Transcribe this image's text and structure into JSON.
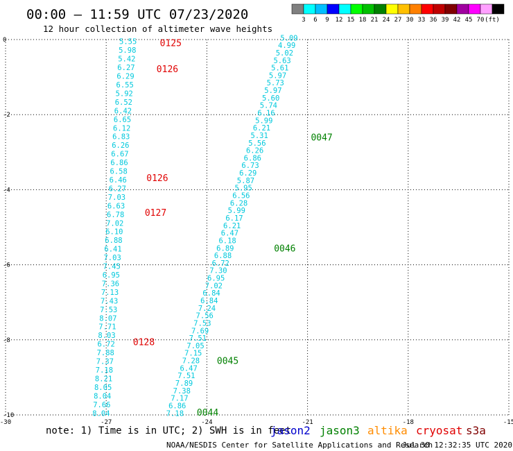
{
  "header": {
    "title": "00:00 – 11:59 UTC 07/23/2020",
    "subtitle": "12 hour collection of altimeter wave heights"
  },
  "scale": {
    "labels": [
      "3",
      "6",
      "9",
      "12",
      "15",
      "18",
      "21",
      "24",
      "27",
      "30",
      "33",
      "36",
      "39",
      "42",
      "45",
      "70",
      "(ft)"
    ],
    "colors": [
      "#808080",
      "#00ffff",
      "#00bfff",
      "#0000ff",
      "#00ffff",
      "#00ff00",
      "#00c000",
      "#008000",
      "#ffff00",
      "#ffc000",
      "#ff8000",
      "#ff0000",
      "#c00000",
      "#800000",
      "#a000a0",
      "#ff00ff",
      "#ffa0ff",
      "#000000"
    ]
  },
  "footer": {
    "note": "note: 1) Time is in UTC; 2) SWH is in feet",
    "satellites": [
      {
        "name": "jason2",
        "color": "#0000cc"
      },
      {
        "name": "jason3",
        "color": "#008000"
      },
      {
        "name": "altika",
        "color": "#ff8c00"
      },
      {
        "name": "cryosat",
        "color": "#e00000"
      },
      {
        "name": "s3a",
        "color": "#800000"
      }
    ],
    "credit": "NOAA/NESDIS Center for Satellite Applications and Research",
    "timestamp": "Jul 30 12:32:35 UTC 2020"
  },
  "chart_data": {
    "type": "scatter",
    "xlim": [
      -30,
      -15
    ],
    "ylim": [
      -10,
      0
    ],
    "x_ticks": [
      "-30",
      "-27",
      "-24",
      "-21",
      "-18",
      "-15"
    ],
    "y_ticks": [
      "0",
      "-2",
      "-4",
      "-6",
      "-8",
      "-10"
    ],
    "grid": true,
    "value_color": "#00c8dc",
    "series": [
      {
        "name": "cryosat",
        "color": "#e00000",
        "values": [
          "5.55",
          "5.98",
          "5.42",
          "6.27",
          "6.29",
          "6.55",
          "5.92",
          "6.52",
          "6.42",
          "6.65",
          "6.12",
          "6.83",
          "6.26",
          "6.67",
          "6.86",
          "6.58",
          "6.46",
          "6.27",
          "7.03",
          "6.63",
          "6.78",
          "7.02",
          "6.10",
          "6.88",
          "6.41",
          "7.03",
          "7.45",
          "6.95",
          "7.36",
          "7.13",
          "7.43",
          "7.53",
          "8.07",
          "7.71",
          "8.03",
          "6.72",
          "7.88",
          "7.37",
          "7.18",
          "8.21",
          "8.05",
          "8.04",
          "7.66",
          "8.04"
        ],
        "x_start": -26.35,
        "x_end": -27.15,
        "y_start": -0.05,
        "y_end": -9.95,
        "time_labels": [
          {
            "text": "0125",
            "lat": -0.08,
            "lon": -25.4
          },
          {
            "text": "0126",
            "lat": -0.78,
            "lon": -25.5
          },
          {
            "text": "0126",
            "lat": -3.68,
            "lon": -25.8
          },
          {
            "text": "0127",
            "lat": -4.6,
            "lon": -25.85
          },
          {
            "text": "0128",
            "lat": -8.05,
            "lon": -26.2
          }
        ]
      },
      {
        "name": "jason3",
        "color": "#008000",
        "values": [
          "5.09",
          "4.99",
          "5.02",
          "5.63",
          "5.61",
          "5.97",
          "5.73",
          "5.97",
          "5.60",
          "5.74",
          "6.16",
          "5.99",
          "6.21",
          "5.31",
          "5.56",
          "6.26",
          "6.86",
          "6.73",
          "6.29",
          "5.87",
          "5.95",
          "6.56",
          "6.28",
          "5.99",
          "6.17",
          "6.21",
          "6.47",
          "6.18",
          "6.89",
          "6.88",
          "6.72",
          "7.30",
          "6.95",
          "7.02",
          "6.84",
          "6.84",
          "7.24",
          "7.56",
          "7.53",
          "7.69",
          "7.51",
          "7.05",
          "7.15",
          "7.28",
          "6.47",
          "7.51",
          "7.89",
          "7.38",
          "7.17",
          "6.86",
          "7.18"
        ],
        "x_start": -21.55,
        "x_end": -24.95,
        "y_start": 0.05,
        "y_end": -9.95,
        "time_labels": [
          {
            "text": "0047",
            "lat": -2.6,
            "lon": -20.9
          },
          {
            "text": "0046",
            "lat": -5.55,
            "lon": -22.0
          },
          {
            "text": "0045",
            "lat": -8.55,
            "lon": -23.7
          },
          {
            "text": "0044",
            "lat": -9.93,
            "lon": -24.3
          }
        ]
      }
    ]
  }
}
